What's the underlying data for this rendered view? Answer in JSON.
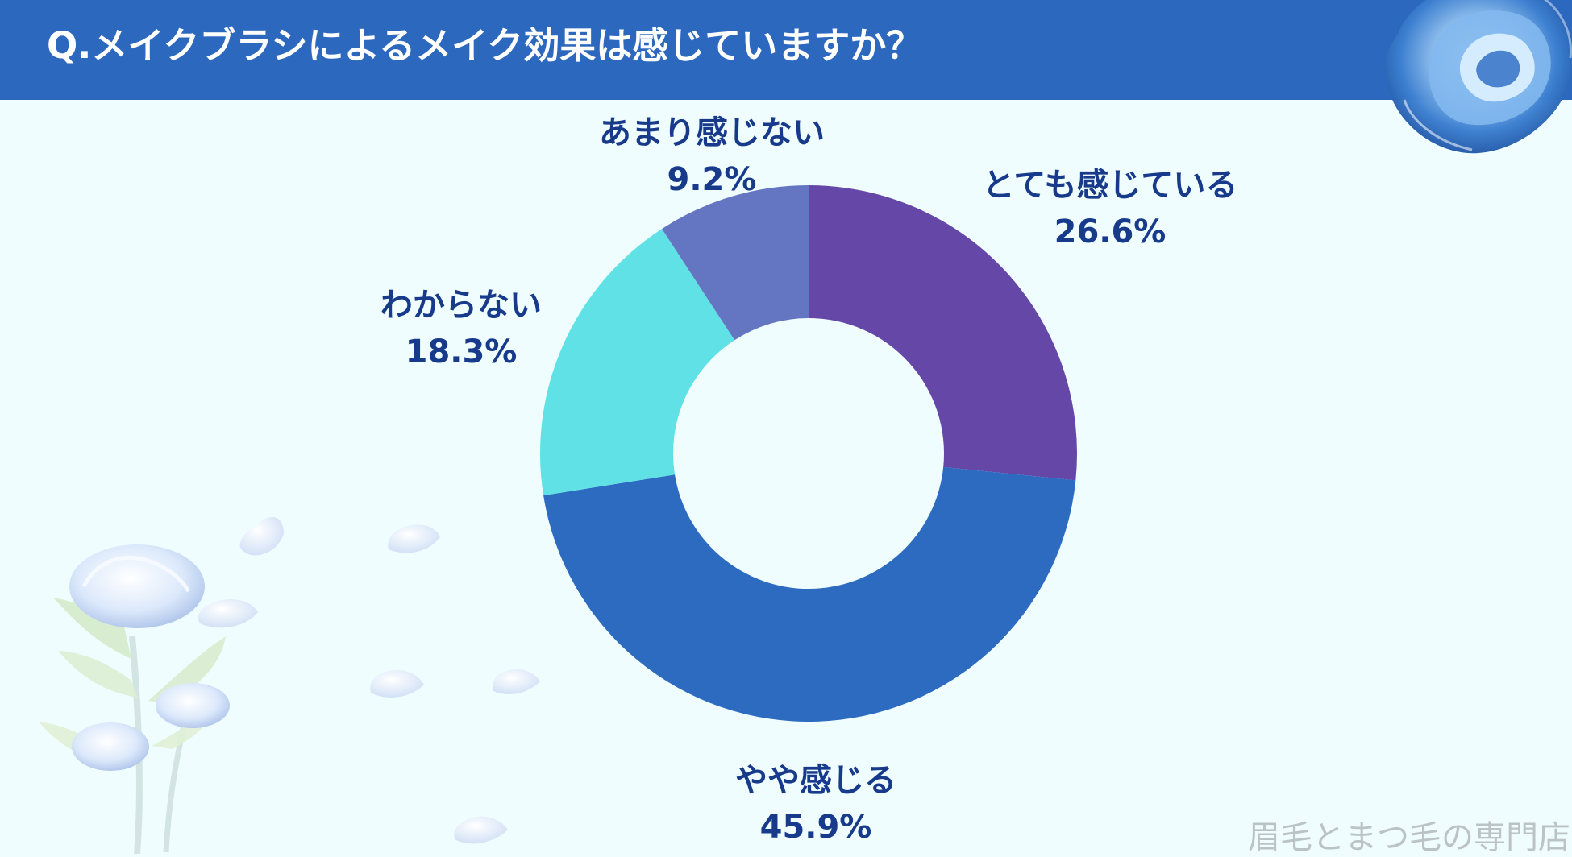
{
  "title": "Q.メイクブラシによるメイク効果は感じていますか？",
  "watermark": "眉毛とまつ毛の専門店",
  "colors": {
    "header": "#2d68bf",
    "background": "#effdff",
    "label": "#173a8b",
    "watermark": "#bcc3c5"
  },
  "chart_data": {
    "type": "pie",
    "chart_style": "donut",
    "title": "Q.メイクブラシによるメイク効果は感じていますか？",
    "series": [
      {
        "label": "とても感じている",
        "value": 26.6,
        "display_value": "26.6%",
        "color": "#6547a7"
      },
      {
        "label": "やや感じる",
        "value": 45.9,
        "display_value": "45.9%",
        "color": "#2d6bc0"
      },
      {
        "label": "わからない",
        "value": 18.3,
        "display_value": "18.3%",
        "color": "#5fe1e6"
      },
      {
        "label": "あまり感じない",
        "value": 9.2,
        "display_value": "9.2%",
        "color": "#6476c1"
      }
    ]
  },
  "decorations": {
    "top_right": "blue-rose-icon",
    "bottom_left": "blue-rose-stem-icon",
    "petals": "petal-icon"
  }
}
